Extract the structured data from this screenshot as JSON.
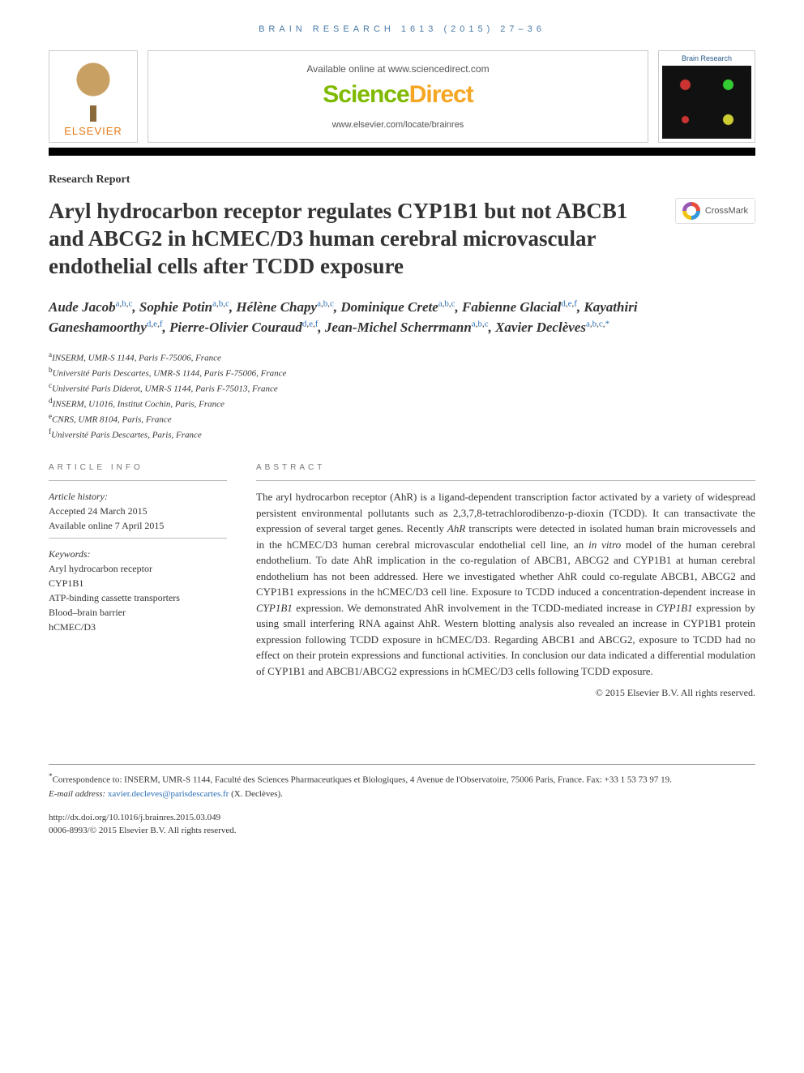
{
  "running_head": "BRAIN RESEARCH 1613 (2015) 27–36",
  "header": {
    "publisher_word": "ELSEVIER",
    "available_line": "Available online at www.sciencedirect.com",
    "sd_logo_main": "Science",
    "sd_logo_accent": "Direct",
    "journal_url": "www.elsevier.com/locate/brainres",
    "cover_title": "Brain Research"
  },
  "crossmark_label": "CrossMark",
  "doc_type": "Research Report",
  "title": "Aryl hydrocarbon receptor regulates CYP1B1 but not ABCB1 and ABCG2 in hCMEC/D3 human cerebral microvascular endothelial cells after TCDD exposure",
  "authors": [
    {
      "name": "Aude Jacob",
      "aff": "a,b,c"
    },
    {
      "name": "Sophie Potin",
      "aff": "a,b,c"
    },
    {
      "name": "Hélène Chapy",
      "aff": "a,b,c"
    },
    {
      "name": "Dominique Crete",
      "aff": "a,b,c"
    },
    {
      "name": "Fabienne Glacial",
      "aff": "d,e,f"
    },
    {
      "name": "Kayathiri Ganeshamoorthy",
      "aff": "d,e,f"
    },
    {
      "name": "Pierre-Olivier Couraud",
      "aff": "d,e,f"
    },
    {
      "name": "Jean-Michel Scherrmann",
      "aff": "a,b,c"
    },
    {
      "name": "Xavier Declèves",
      "aff": "a,b,c,*"
    }
  ],
  "affiliations": [
    {
      "key": "a",
      "text": "INSERM, UMR-S 1144, Paris F-75006, France"
    },
    {
      "key": "b",
      "text": "Université Paris Descartes, UMR-S 1144, Paris F-75006, France"
    },
    {
      "key": "c",
      "text": "Université Paris Diderot, UMR-S 1144, Paris F-75013, France"
    },
    {
      "key": "d",
      "text": "INSERM, U1016, Institut Cochin, Paris, France"
    },
    {
      "key": "e",
      "text": "CNRS, UMR 8104, Paris, France"
    },
    {
      "key": "f",
      "text": "Université Paris Descartes, Paris, France"
    }
  ],
  "article_info": {
    "heading": "article info",
    "history_label": "Article history:",
    "accepted": "Accepted 24 March 2015",
    "online": "Available online 7 April 2015",
    "keywords_label": "Keywords:",
    "keywords": [
      "Aryl hydrocarbon receptor",
      "CYP1B1",
      "ATP-binding cassette transporters",
      "Blood–brain barrier",
      "hCMEC/D3"
    ]
  },
  "abstract": {
    "heading": "abstract",
    "text_parts": [
      "The aryl hydrocarbon receptor (AhR) is a ligand-dependent transcription factor activated by a variety of widespread persistent environmental pollutants such as 2,3,7,8-tetrachlorodibenzo-p-dioxin (TCDD). It can transactivate the expression of several target genes. Recently ",
      "AhR",
      " transcripts were detected in isolated human brain microvessels and in the hCMEC/D3 human cerebral microvascular endothelial cell line, an ",
      "in vitro",
      " model of the human cerebral endothelium. To date AhR implication in the co-regulation of ABCB1, ABCG2 and CYP1B1 at human cerebral endothelium has not been addressed. Here we investigated whether AhR could co-regulate ABCB1, ABCG2 and CYP1B1 expressions in the hCMEC/D3 cell line. Exposure to TCDD induced a concentration-dependent increase in ",
      "CYP1B1",
      " expression. We demonstrated AhR involvement in the TCDD-mediated increase in ",
      "CYP1B1",
      " expression by using small interfering RNA against AhR. Western blotting analysis also revealed an increase in CYP1B1 protein expression following TCDD exposure in hCMEC/D3. Regarding ABCB1 and ABCG2, exposure to TCDD had no effect on their protein expressions and functional activities. In conclusion our data indicated a differential modulation of CYP1B1 and ABCB1/ABCG2 expressions in hCMEC/D3 cells following TCDD exposure."
    ],
    "copyright": "© 2015 Elsevier B.V. All rights reserved."
  },
  "footnotes": {
    "corr_label": "*",
    "corr_text": "Correspondence to: INSERM, UMR-S 1144, Faculté des Sciences Pharmaceutiques et Biologiques, 4 Avenue de l'Observatoire, 75006 Paris, France. Fax: +33 1 53 73 97 19.",
    "email_label": "E-mail address: ",
    "email": "xavier.decleves@parisdescartes.fr",
    "email_paren": " (X. Declèves)."
  },
  "doi": {
    "url": "http://dx.doi.org/10.1016/j.brainres.2015.03.049",
    "issn_line": "0006-8993/© 2015 Elsevier B.V. All rights reserved."
  },
  "colors": {
    "link": "#2a6fb5",
    "sd_green": "#7fba00",
    "sd_orange": "#f5a623",
    "elsevier_orange": "#e67817",
    "head_blue": "#4a7ba6"
  }
}
